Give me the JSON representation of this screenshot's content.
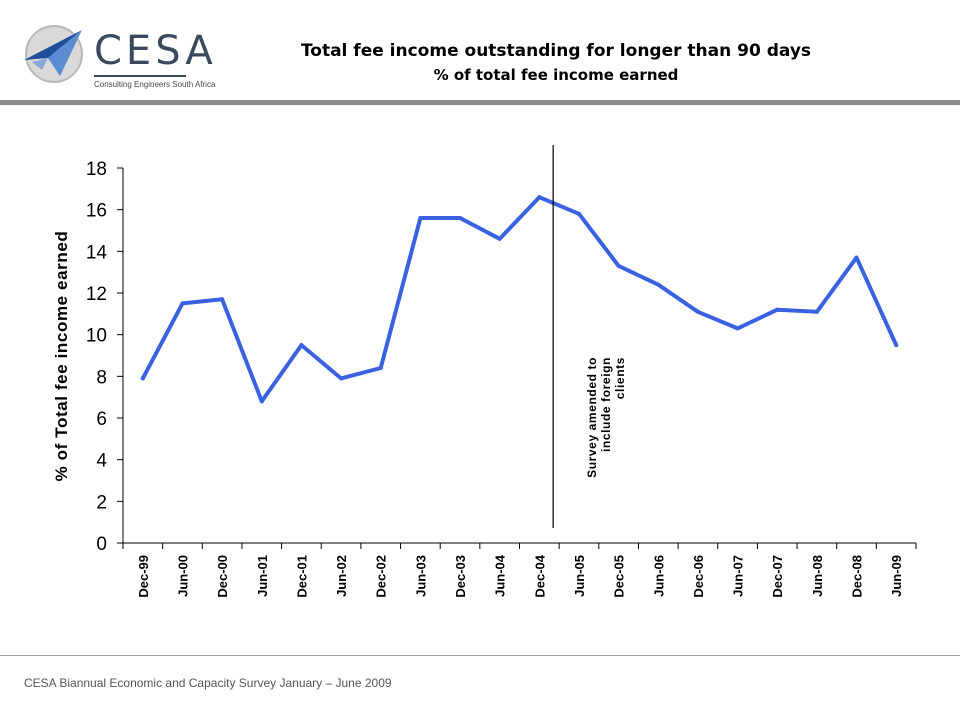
{
  "logo": {
    "name": "CESA",
    "subtitle": "Consulting Engineers South Africa"
  },
  "header": {
    "title": "Total fee income outstanding for longer than 90 days",
    "subtitle": "% of total fee income earned"
  },
  "footer": {
    "text": "CESA Biannual Economic and Capacity Survey January – June 2009"
  },
  "colors": {
    "series": "#3a62e0",
    "axis": "#000000",
    "rule": "#8a8a8a"
  },
  "chart_data": {
    "type": "line",
    "title": "Total fee income outstanding for longer than 90 days",
    "subtitle": "% of total fee income earned",
    "xlabel": "",
    "ylabel": "% of Total fee income earned",
    "ylim": [
      0,
      18
    ],
    "yticks": [
      0,
      2,
      4,
      6,
      8,
      10,
      12,
      14,
      16,
      18
    ],
    "grid": false,
    "legend": "none",
    "categories": [
      "Dec-99",
      "Jun-00",
      "Dec-00",
      "Jun-01",
      "Dec-01",
      "Jun-02",
      "Dec-02",
      "Jun-03",
      "Dec-03",
      "Jun-04",
      "Dec-04",
      "Jun-05",
      "Dec-05",
      "Jun-06",
      "Dec-06",
      "Jun-07",
      "Dec-07",
      "Jun-08",
      "Dec-08",
      "Jun-09"
    ],
    "series": [
      {
        "values": [
          7.9,
          11.5,
          11.7,
          6.8,
          9.5,
          7.9,
          8.4,
          15.6,
          15.6,
          14.6,
          16.6,
          15.8,
          13.3,
          12.4,
          11.1,
          10.3,
          11.2,
          11.1,
          13.7,
          9.5
        ]
      }
    ],
    "annotations": [
      {
        "text": "Survey amended to include foreign clients",
        "lines": [
          "Survey amended to",
          "include foreign",
          "clients"
        ],
        "marker": "vertical line",
        "between": [
          "Dec-04",
          "Jun-05"
        ]
      }
    ]
  }
}
